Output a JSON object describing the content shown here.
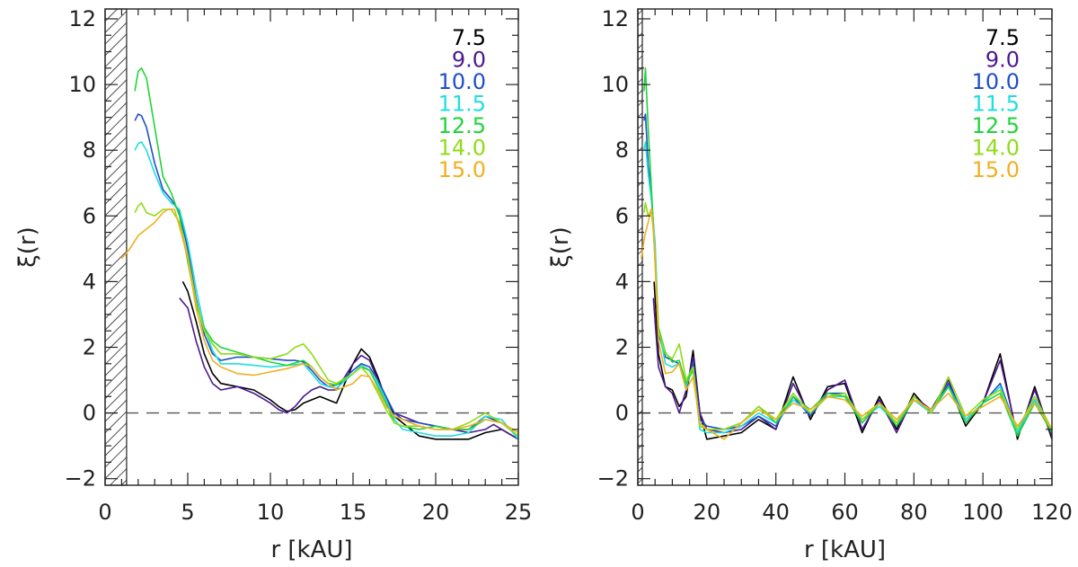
{
  "chart_data": [
    {
      "type": "line",
      "xlabel": "r [kAU]",
      "ylabel": "ξ(r)",
      "xlim": [
        0,
        25
      ],
      "ylim": [
        -2.2,
        12.3
      ],
      "xticks": [
        0,
        5,
        10,
        15,
        20,
        25
      ],
      "yticks": [
        -2,
        0,
        2,
        4,
        6,
        8,
        10,
        12
      ],
      "excluded_region": [
        0,
        1.3
      ],
      "reference_line_y": 0,
      "legend_position": "top-right",
      "series": [
        {
          "name": "7.5",
          "color": "#000000",
          "x": [
            4.7,
            5,
            5.5,
            6,
            6.5,
            7,
            8,
            9,
            10,
            10.5,
            11,
            11.5,
            12,
            13,
            14,
            14.5,
            15,
            15.5,
            16,
            16.5,
            17,
            17.5,
            18,
            18.5,
            19,
            20,
            21,
            22,
            23,
            24,
            25
          ],
          "y": [
            4.0,
            3.7,
            2.8,
            1.8,
            1.2,
            0.9,
            0.8,
            0.7,
            0.4,
            0.2,
            0.05,
            0.1,
            0.3,
            0.5,
            0.3,
            0.9,
            1.5,
            1.95,
            1.7,
            1.1,
            0.4,
            -0.1,
            -0.3,
            -0.5,
            -0.7,
            -0.8,
            -0.8,
            -0.8,
            -0.6,
            -0.5,
            -0.8
          ]
        },
        {
          "name": "9.0",
          "color": "#4b1a8e",
          "x": [
            4.5,
            5,
            5.5,
            6,
            6.5,
            7,
            8,
            9,
            10,
            10.5,
            11,
            11.5,
            12,
            12.5,
            13,
            13.5,
            14,
            14.5,
            15,
            15.5,
            16,
            16.5,
            17,
            17.5,
            18,
            19,
            20,
            21,
            22,
            23,
            23.5,
            24,
            25
          ],
          "y": [
            3.5,
            3.2,
            2.2,
            1.4,
            0.9,
            0.7,
            0.8,
            0.6,
            0.3,
            0.1,
            0.0,
            0.2,
            0.5,
            0.7,
            0.8,
            0.7,
            0.7,
            1.1,
            1.5,
            1.75,
            1.6,
            1.0,
            0.4,
            0.0,
            -0.1,
            -0.3,
            -0.4,
            -0.5,
            -0.6,
            -0.5,
            -0.35,
            -0.5,
            -0.8
          ]
        },
        {
          "name": "10.0",
          "color": "#1f4fc8",
          "x": [
            1.8,
            2,
            2.2,
            2.5,
            3,
            3.5,
            4,
            4.5,
            5,
            5.5,
            6,
            6.5,
            7,
            8,
            9,
            10,
            11,
            11.5,
            12,
            12.5,
            13,
            13.5,
            14,
            15,
            15.5,
            16,
            16.5,
            17,
            17.5,
            18,
            19,
            20,
            21,
            22,
            23,
            24,
            25
          ],
          "y": [
            8.9,
            9.1,
            9.05,
            8.7,
            7.6,
            6.8,
            6.5,
            6.1,
            5.0,
            3.5,
            2.4,
            1.8,
            1.6,
            1.7,
            1.7,
            1.65,
            1.6,
            1.6,
            1.55,
            1.3,
            1.0,
            0.8,
            0.85,
            1.3,
            1.5,
            1.4,
            1.0,
            0.5,
            0.0,
            -0.2,
            -0.3,
            -0.4,
            -0.5,
            -0.5,
            -0.1,
            -0.3,
            -0.7
          ]
        },
        {
          "name": "11.5",
          "color": "#21dde0",
          "x": [
            1.8,
            2,
            2.2,
            2.5,
            3,
            3.5,
            4,
            4.5,
            5,
            5.5,
            6,
            6.5,
            7,
            8,
            9,
            10,
            11,
            12,
            12.5,
            13,
            13.5,
            14,
            15,
            15.5,
            16,
            16.5,
            17,
            17.5,
            18,
            19,
            20,
            21,
            22,
            23,
            24,
            25
          ],
          "y": [
            8.0,
            8.2,
            8.25,
            8.0,
            7.3,
            6.7,
            6.4,
            6.2,
            5.2,
            3.8,
            2.6,
            1.9,
            1.5,
            1.5,
            1.45,
            1.4,
            1.45,
            1.5,
            1.2,
            0.9,
            0.8,
            0.75,
            1.2,
            1.45,
            1.3,
            0.9,
            0.4,
            -0.2,
            -0.5,
            -0.6,
            -0.7,
            -0.7,
            -0.6,
            -0.1,
            -0.2,
            -0.8
          ]
        },
        {
          "name": "12.5",
          "color": "#21d33a",
          "x": [
            1.8,
            2,
            2.2,
            2.5,
            3,
            3.5,
            4,
            4.5,
            5,
            5.5,
            6,
            6.5,
            7,
            8,
            9,
            10,
            11,
            12,
            12.5,
            13,
            13.5,
            14,
            15,
            15.5,
            16,
            16.5,
            17,
            17.5,
            18,
            19,
            20,
            21,
            22,
            23,
            24,
            25
          ],
          "y": [
            9.8,
            10.4,
            10.5,
            10.2,
            8.7,
            7.2,
            6.7,
            6.0,
            4.6,
            3.3,
            2.6,
            2.2,
            2.0,
            1.85,
            1.7,
            1.55,
            1.45,
            1.6,
            1.4,
            1.1,
            0.9,
            0.85,
            1.2,
            1.4,
            1.3,
            0.8,
            0.3,
            -0.3,
            -0.4,
            -0.5,
            -0.4,
            -0.5,
            -0.5,
            -0.2,
            -0.3,
            -0.7
          ]
        },
        {
          "name": "14.0",
          "color": "#8fdc18",
          "x": [
            1.8,
            2,
            2.2,
            2.5,
            3,
            3.5,
            4,
            4.5,
            5,
            5.5,
            6,
            6.5,
            7,
            8,
            9,
            10,
            11,
            11.5,
            12,
            12.5,
            13,
            13.5,
            14,
            15,
            15.5,
            16,
            16.5,
            17,
            17.5,
            18,
            19,
            20,
            21,
            22,
            23,
            24,
            25
          ],
          "y": [
            6.1,
            6.3,
            6.4,
            6.1,
            6.0,
            6.2,
            6.2,
            5.8,
            4.8,
            3.4,
            2.5,
            2.1,
            1.8,
            1.8,
            1.7,
            1.65,
            1.8,
            2.0,
            2.1,
            1.8,
            1.4,
            1.0,
            0.9,
            1.2,
            1.4,
            1.1,
            0.6,
            0.1,
            -0.3,
            -0.4,
            -0.4,
            -0.5,
            -0.5,
            -0.3,
            0.0,
            -0.3,
            -0.7
          ]
        },
        {
          "name": "15.0",
          "color": "#f0b020",
          "x": [
            1,
            1.5,
            2,
            2.5,
            3,
            3.5,
            3.8,
            4.2,
            4.6,
            5,
            5.5,
            6,
            6.5,
            7,
            8,
            9,
            10,
            11,
            12,
            12.5,
            13,
            13.5,
            14,
            15,
            15.5,
            16,
            16.5,
            17,
            17.5,
            18,
            18.5,
            19,
            20,
            21,
            22,
            23,
            24,
            25
          ],
          "y": [
            4.7,
            5.0,
            5.4,
            5.6,
            5.8,
            6.1,
            6.2,
            6.2,
            5.5,
            4.7,
            3.2,
            2.2,
            1.6,
            1.4,
            1.2,
            1.15,
            1.25,
            1.35,
            1.5,
            1.4,
            1.1,
            0.9,
            0.7,
            0.9,
            1.15,
            1.1,
            0.7,
            0.2,
            -0.1,
            -0.2,
            -0.3,
            -0.4,
            -0.5,
            -0.5,
            -0.4,
            -0.2,
            -0.3,
            -0.6
          ]
        }
      ]
    },
    {
      "type": "line",
      "xlabel": "r [kAU]",
      "ylabel": "ξ(r)",
      "xlim": [
        0,
        120
      ],
      "ylim": [
        -2.2,
        12.3
      ],
      "xticks": [
        0,
        20,
        40,
        60,
        80,
        100,
        120
      ],
      "yticks": [
        -2,
        0,
        2,
        4,
        6,
        8,
        10,
        12
      ],
      "excluded_region": [
        0,
        1.3
      ],
      "reference_line_y": 0,
      "legend_position": "top-right",
      "series": [
        {
          "name": "7.5",
          "color": "#000000",
          "x": [
            4.7,
            6,
            8,
            10,
            12,
            14,
            16,
            18,
            20,
            25,
            30,
            35,
            40,
            45,
            50,
            55,
            60,
            65,
            70,
            75,
            80,
            85,
            90,
            95,
            100,
            105,
            110,
            115,
            120
          ],
          "y": [
            4.0,
            1.8,
            0.8,
            0.7,
            0.2,
            0.5,
            1.9,
            0.0,
            -0.8,
            -0.7,
            -0.6,
            -0.2,
            -0.5,
            1.1,
            -0.2,
            0.8,
            0.9,
            -0.6,
            0.5,
            -0.5,
            0.6,
            0.0,
            0.9,
            -0.4,
            0.3,
            1.8,
            -0.8,
            0.8,
            -0.8
          ]
        },
        {
          "name": "9.0",
          "color": "#4b1a8e",
          "x": [
            4.5,
            6,
            8,
            10,
            12,
            14,
            16,
            18,
            20,
            25,
            30,
            35,
            40,
            45,
            50,
            55,
            60,
            65,
            70,
            75,
            80,
            85,
            90,
            95,
            100,
            105,
            110,
            115,
            120
          ],
          "y": [
            3.5,
            1.4,
            0.8,
            0.6,
            0.0,
            0.7,
            1.7,
            0.0,
            -0.5,
            -0.6,
            -0.5,
            -0.1,
            -0.5,
            0.9,
            -0.1,
            0.7,
            1.0,
            -0.5,
            0.4,
            -0.6,
            0.5,
            0.1,
            1.0,
            -0.3,
            0.3,
            1.6,
            -0.7,
            0.7,
            -0.7
          ]
        },
        {
          "name": "10.0",
          "color": "#1f4fc8",
          "x": [
            1.8,
            2.2,
            3,
            4,
            5,
            6,
            8,
            10,
            12,
            14,
            16,
            18,
            20,
            25,
            30,
            35,
            40,
            45,
            50,
            55,
            60,
            65,
            70,
            75,
            80,
            85,
            90,
            95,
            100,
            105,
            110,
            115,
            120
          ],
          "y": [
            8.9,
            9.1,
            7.6,
            6.5,
            5.0,
            2.4,
            1.7,
            1.6,
            1.5,
            0.8,
            1.5,
            -0.2,
            -0.4,
            -0.5,
            -0.4,
            -0.1,
            -0.4,
            0.5,
            -0.1,
            0.6,
            0.6,
            -0.3,
            0.3,
            -0.4,
            0.4,
            0.0,
            0.9,
            -0.2,
            0.3,
            0.9,
            -0.6,
            0.4,
            -0.6
          ]
        },
        {
          "name": "11.5",
          "color": "#21dde0",
          "x": [
            1.8,
            2.2,
            3,
            4,
            5,
            6,
            8,
            10,
            12,
            14,
            16,
            18,
            20,
            25,
            30,
            35,
            40,
            45,
            50,
            55,
            60,
            65,
            70,
            75,
            80,
            85,
            90,
            95,
            100,
            105,
            110,
            115,
            120
          ],
          "y": [
            8.0,
            8.25,
            7.3,
            6.4,
            5.2,
            2.6,
            1.5,
            1.4,
            1.5,
            0.8,
            1.4,
            -0.5,
            -0.6,
            -0.6,
            -0.4,
            0.0,
            -0.3,
            0.4,
            0.0,
            0.5,
            0.5,
            -0.2,
            0.2,
            -0.3,
            0.4,
            0.0,
            0.8,
            -0.2,
            0.3,
            0.8,
            -0.6,
            0.4,
            -0.6
          ]
        },
        {
          "name": "12.5",
          "color": "#21d33a",
          "x": [
            1.8,
            2.2,
            3,
            4,
            5,
            6,
            8,
            10,
            12,
            14,
            16,
            18,
            20,
            25,
            30,
            35,
            40,
            45,
            50,
            55,
            60,
            65,
            70,
            75,
            80,
            85,
            90,
            95,
            100,
            105,
            110,
            115,
            120
          ],
          "y": [
            9.8,
            10.5,
            8.7,
            6.7,
            4.6,
            2.6,
            1.85,
            1.55,
            1.6,
            0.9,
            1.3,
            -0.4,
            -0.5,
            -0.5,
            -0.3,
            0.2,
            -0.3,
            0.5,
            0.1,
            0.6,
            0.5,
            -0.3,
            0.3,
            -0.4,
            0.4,
            0.1,
            0.8,
            -0.3,
            0.3,
            0.6,
            -0.7,
            0.3,
            -0.6
          ]
        },
        {
          "name": "14.0",
          "color": "#8fdc18",
          "x": [
            1.8,
            2.2,
            3,
            4,
            5,
            6,
            8,
            10,
            12,
            14,
            16,
            18,
            20,
            25,
            30,
            35,
            40,
            45,
            50,
            55,
            60,
            65,
            70,
            75,
            80,
            85,
            90,
            95,
            100,
            105,
            110,
            115,
            120
          ],
          "y": [
            6.1,
            6.4,
            6.0,
            6.2,
            4.8,
            2.5,
            1.8,
            1.65,
            2.1,
            1.0,
            1.4,
            -0.4,
            -0.5,
            -0.5,
            -0.3,
            0.2,
            -0.2,
            0.6,
            0.0,
            0.5,
            0.6,
            -0.2,
            0.3,
            -0.3,
            0.5,
            0.0,
            1.1,
            -0.1,
            0.4,
            0.7,
            -0.5,
            0.5,
            -0.5
          ]
        },
        {
          "name": "15.0",
          "color": "#f0b020",
          "x": [
            1,
            2,
            3,
            3.8,
            4.6,
            6,
            8,
            10,
            12,
            14,
            16,
            18,
            20,
            25,
            30,
            35,
            40,
            45,
            50,
            55,
            60,
            65,
            70,
            75,
            80,
            85,
            90,
            95,
            100,
            105,
            110,
            115,
            120
          ],
          "y": [
            4.7,
            5.4,
            5.8,
            6.2,
            5.5,
            2.2,
            1.2,
            1.25,
            1.5,
            0.7,
            1.1,
            -0.3,
            -0.5,
            -0.8,
            -0.3,
            0.1,
            -0.2,
            0.3,
            0.1,
            0.5,
            0.4,
            -0.1,
            0.3,
            -0.2,
            0.4,
            0.1,
            0.6,
            -0.1,
            0.2,
            0.5,
            -0.4,
            0.3,
            -0.5
          ]
        }
      ]
    }
  ]
}
